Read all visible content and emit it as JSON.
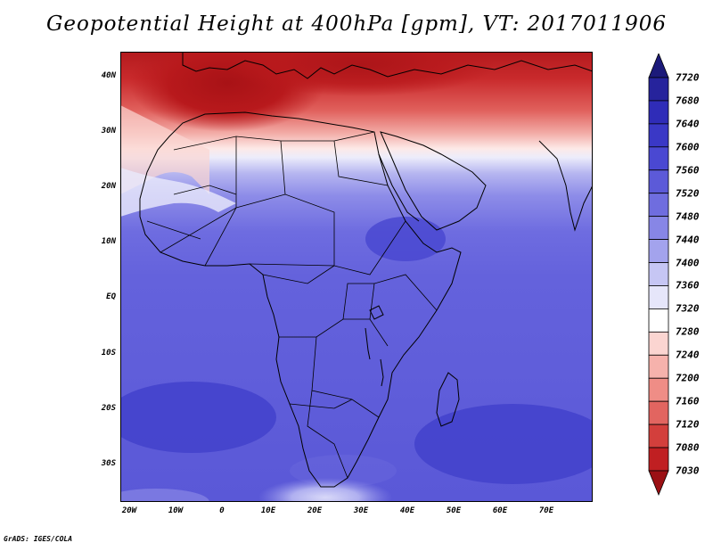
{
  "title": "Geopotential Height at 400hPa [gpm], VT: 2017011906",
  "credit": "GrADS: IGES/COLA",
  "map": {
    "latitude_labels": [
      "40N",
      "30N",
      "20N",
      "10N",
      "EQ",
      "10S",
      "20S",
      "30S"
    ],
    "longitude_labels": [
      "20W",
      "10W",
      "0",
      "10E",
      "20E",
      "30E",
      "40E",
      "50E",
      "60E",
      "70E"
    ],
    "extent": {
      "lon": [
        -23,
        80
      ],
      "lat": [
        -37,
        45
      ]
    },
    "variable": "Geopotential Height",
    "level": "400hPa",
    "units": "gpm",
    "valid_time": "2017011906"
  },
  "colorbar": {
    "levels": [
      7720,
      7680,
      7640,
      7600,
      7560,
      7520,
      7480,
      7440,
      7400,
      7360,
      7320,
      7280,
      7240,
      7200,
      7160,
      7120,
      7080,
      7030
    ],
    "colors": [
      "#1c1a7a",
      "#26239c",
      "#2f2cb8",
      "#3a38c6",
      "#4a48d2",
      "#5c5ad8",
      "#6f6ddf",
      "#8786e6",
      "#a3a3ed",
      "#c6c6f4",
      "#e6e6fa",
      "#ffffff",
      "#fbd5d1",
      "#f6b2ac",
      "#ef8d86",
      "#e26560",
      "#d33f3c",
      "#c01f22",
      "#9b1014"
    ]
  }
}
